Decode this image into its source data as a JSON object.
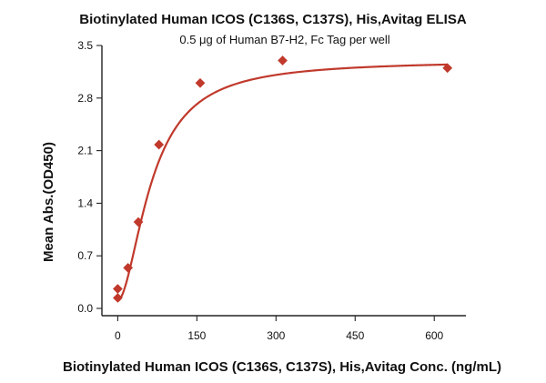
{
  "chart_data": {
    "type": "scatter",
    "title": "Biotinylated Human ICOS (C136S, C137S), His,Avitag ELISA",
    "subtitle": "0.5 μg of Human B7-H2, Fc Tag per well",
    "xlabel": "Biotinylated Human ICOS (C136S, C137S), His,Avitag Conc. (ng/mL)",
    "ylabel": "Mean Abs.(OD450)",
    "xlim": [
      -30,
      660
    ],
    "ylim": [
      0.0,
      3.5
    ],
    "x_ticks": [
      0,
      150,
      300,
      450,
      600
    ],
    "y_ticks": [
      0.0,
      0.7,
      1.4,
      2.1,
      2.8,
      3.5
    ],
    "x_tick_labels": [
      "0",
      "150",
      "300",
      "450",
      "600"
    ],
    "y_tick_labels": [
      "0.0",
      "0.7",
      "1.4",
      "2.1",
      "2.8",
      "3.5"
    ],
    "series": [
      {
        "name": "Mean Abs.(OD450)",
        "x": [
          0,
          0,
          19.5,
          39.1,
          78.1,
          156.3,
          312.5,
          625
        ],
        "y": [
          0.14,
          0.26,
          0.54,
          1.15,
          2.18,
          3.0,
          3.3,
          3.2
        ],
        "color": "#c0392b"
      }
    ],
    "curve": {
      "type": "4PL",
      "bottom": 0.1,
      "top": 3.3,
      "ec50": 65,
      "hill": 1.8,
      "color": "#c0392b"
    },
    "grid": false,
    "legend": "none"
  }
}
